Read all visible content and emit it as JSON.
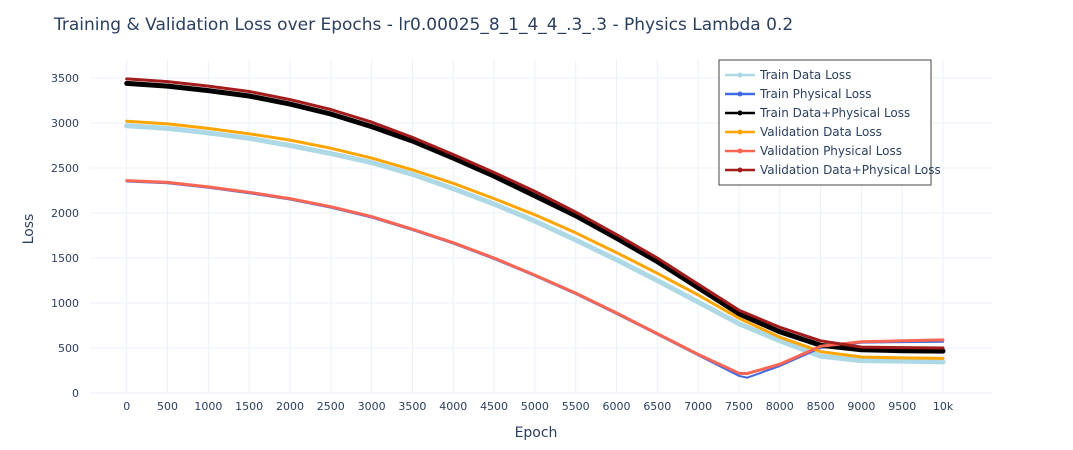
{
  "chart_data": {
    "type": "line",
    "title": "Training & Validation Loss over Epochs  - lr0.00025_8_1_4_4_.3_.3 - Physics Lambda 0.2",
    "xlabel": "Epoch",
    "ylabel": "Loss",
    "xlim": [
      -450,
      10600
    ],
    "ylim": [
      0,
      3700
    ],
    "x_ticks": [
      0,
      500,
      1000,
      1500,
      2000,
      2500,
      3000,
      3500,
      4000,
      4500,
      5000,
      5500,
      6000,
      6500,
      7000,
      7500,
      8000,
      8500,
      9000,
      9500,
      10000
    ],
    "x_tick_labels": [
      "0",
      "500",
      "1000",
      "1500",
      "2000",
      "2500",
      "3000",
      "3500",
      "4000",
      "4500",
      "5000",
      "5500",
      "6000",
      "6500",
      "7000",
      "7500",
      "8000",
      "8500",
      "9000",
      "9500",
      "10k"
    ],
    "y_ticks": [
      0,
      500,
      1000,
      1500,
      2000,
      2500,
      3000,
      3500
    ],
    "y_tick_labels": [
      "0",
      "500",
      "1000",
      "1500",
      "2000",
      "2500",
      "3000",
      "3500"
    ],
    "grid": true,
    "legend_position": "top-right",
    "series": [
      {
        "name": "Train Data Loss",
        "color": "#add8e6",
        "width": 5,
        "x": [
          0,
          500,
          1000,
          1500,
          2000,
          2500,
          3000,
          3500,
          4000,
          4500,
          5000,
          5500,
          6000,
          6500,
          7000,
          7500,
          8000,
          8500,
          9000,
          9500,
          10000
        ],
        "y": [
          2970,
          2940,
          2890,
          2830,
          2750,
          2660,
          2560,
          2430,
          2270,
          2100,
          1910,
          1700,
          1480,
          1250,
          1010,
          770,
          580,
          410,
          360,
          355,
          345
        ]
      },
      {
        "name": "Train Physical Loss",
        "color": "#4169e1",
        "width": 2,
        "x": [
          0,
          500,
          1000,
          1500,
          2000,
          2500,
          3000,
          3500,
          4000,
          4500,
          5000,
          5500,
          6000,
          6500,
          7000,
          7500,
          7600,
          8000,
          8500,
          9000,
          9500,
          10000
        ],
        "y": [
          2350,
          2330,
          2280,
          2220,
          2150,
          2060,
          1950,
          1810,
          1660,
          1490,
          1300,
          1100,
          880,
          650,
          420,
          190,
          170,
          300,
          500,
          560,
          565,
          570
        ]
      },
      {
        "name": "Train Data+Physical Loss",
        "color": "#000000",
        "width": 5,
        "x": [
          0,
          500,
          1000,
          1500,
          2000,
          2500,
          3000,
          3500,
          4000,
          4500,
          5000,
          5500,
          6000,
          6500,
          7000,
          7500,
          8000,
          8500,
          9000,
          9500,
          10000
        ],
        "y": [
          3440,
          3410,
          3360,
          3300,
          3210,
          3100,
          2960,
          2800,
          2610,
          2410,
          2190,
          1970,
          1720,
          1460,
          1170,
          880,
          680,
          530,
          480,
          470,
          465
        ]
      },
      {
        "name": "Validation Data Loss",
        "color": "#ffa500",
        "width": 3,
        "x": [
          0,
          500,
          1000,
          1500,
          2000,
          2500,
          3000,
          3500,
          4000,
          4500,
          5000,
          5500,
          6000,
          6500,
          7000,
          7500,
          8000,
          8500,
          9000,
          9500,
          10000
        ],
        "y": [
          3020,
          2990,
          2940,
          2880,
          2810,
          2720,
          2610,
          2480,
          2330,
          2160,
          1980,
          1780,
          1560,
          1330,
          1090,
          830,
          620,
          460,
          400,
          390,
          385
        ]
      },
      {
        "name": "Validation Physical Loss",
        "color": "#fa6653",
        "width": 3,
        "x": [
          0,
          500,
          1000,
          1500,
          2000,
          2500,
          3000,
          3500,
          4000,
          4500,
          5000,
          5500,
          6000,
          6500,
          7000,
          7500,
          7600,
          8000,
          8500,
          9000,
          9500,
          10000
        ],
        "y": [
          2360,
          2340,
          2290,
          2230,
          2160,
          2070,
          1960,
          1820,
          1670,
          1500,
          1310,
          1110,
          890,
          660,
          430,
          220,
          215,
          320,
          520,
          570,
          580,
          590
        ]
      },
      {
        "name": "Validation Data+Physical Loss",
        "color": "#a31b1b",
        "width": 3,
        "x": [
          0,
          500,
          1000,
          1500,
          2000,
          2500,
          3000,
          3500,
          4000,
          4500,
          5000,
          5500,
          6000,
          6500,
          7000,
          7500,
          8000,
          8500,
          9000,
          9500,
          10000
        ],
        "y": [
          3490,
          3460,
          3410,
          3350,
          3260,
          3150,
          3010,
          2840,
          2650,
          2450,
          2240,
          2010,
          1760,
          1500,
          1210,
          920,
          730,
          580,
          510,
          505,
          500
        ]
      }
    ]
  }
}
